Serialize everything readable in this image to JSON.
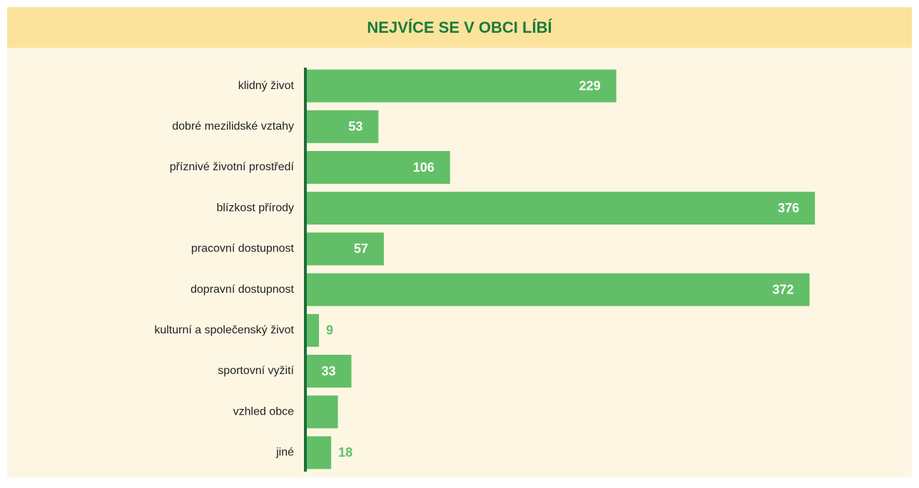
{
  "chart_data": {
    "type": "bar",
    "orientation": "horizontal",
    "title": "NEJVÍCE SE V OBCI LÍBÍ",
    "categories": [
      "klidný život",
      "dobré mezilidské vztahy",
      "příznivé životní prostředí",
      "blízkost přírody",
      "pracovní dostupnost",
      "dopravní dostupnost",
      "kulturní a společenský život",
      "sportovní vyžití",
      "vzhled obce",
      "jiné"
    ],
    "values": [
      229,
      53,
      106,
      376,
      57,
      372,
      9,
      33,
      23,
      18
    ],
    "value_labels": [
      "229",
      "53",
      "106",
      "376",
      "57",
      "372",
      "9",
      "33",
      null,
      "18"
    ],
    "color": "#62bf67",
    "xlim": [
      0,
      400
    ]
  }
}
